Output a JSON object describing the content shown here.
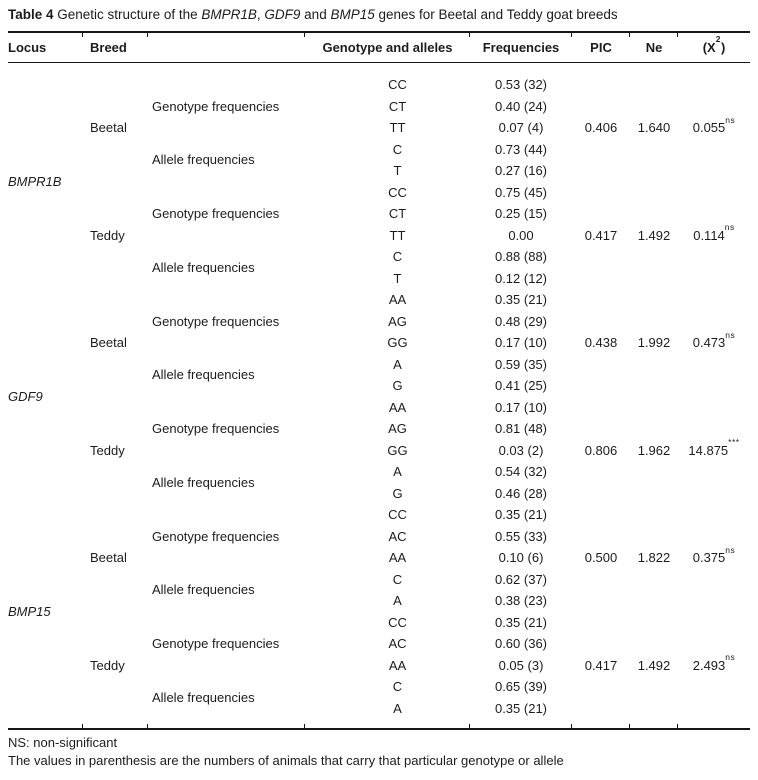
{
  "title": {
    "segments": [
      {
        "text": "Table 4 ",
        "style": "bold"
      },
      {
        "text": "Genetic structure of the ",
        "style": "normal"
      },
      {
        "text": "BMPR1B",
        "style": "italic"
      },
      {
        "text": ", ",
        "style": "normal"
      },
      {
        "text": "GDF9",
        "style": "italic"
      },
      {
        "text": " and ",
        "style": "normal"
      },
      {
        "text": "BMP15",
        "style": "italic"
      },
      {
        "text": " genes for Beetal and Teddy goat breeds",
        "style": "normal"
      }
    ]
  },
  "table": {
    "headers": {
      "locus": "Locus",
      "breed": "Breed",
      "genotype_alleles": "Genotype and alleles",
      "frequencies": "Frequencies",
      "pic": "PIC",
      "ne": "Ne",
      "chi": {
        "pre": "(X",
        "sup": "2",
        "post": ")"
      }
    },
    "genes": [
      {
        "locus": "BMPR1B",
        "breeds": [
          {
            "name": "Beetal",
            "genotype_label": "Genotype frequencies",
            "allele_label": "Allele frequencies",
            "genotypes": [
              [
                "CC",
                "0.53 (32)"
              ],
              [
                "CT",
                "0.40 (24)"
              ],
              [
                "TT",
                "0.07 (4)"
              ]
            ],
            "alleles": [
              [
                "C",
                "0.73 (44)"
              ],
              [
                "T",
                "0.27 (16)"
              ]
            ],
            "pic": "0.406",
            "ne": "1.640",
            "chi": "0.055",
            "chi_sup": "ns"
          },
          {
            "name": "Teddy",
            "genotype_label": "Genotype frequencies",
            "allele_label": "Allele frequencies",
            "genotypes": [
              [
                "CC",
                "0.75 (45)"
              ],
              [
                "CT",
                "0.25 (15)"
              ],
              [
                "TT",
                "0.00"
              ]
            ],
            "alleles": [
              [
                "C",
                "0.88 (88)"
              ],
              [
                "T",
                "0.12 (12)"
              ]
            ],
            "pic": "0.417",
            "ne": "1.492",
            "chi": "0.114",
            "chi_sup": "ns"
          }
        ]
      },
      {
        "locus": "GDF9",
        "breeds": [
          {
            "name": "Beetal",
            "genotype_label": "Genotype frequencies",
            "allele_label": "Allele frequencies",
            "genotypes": [
              [
                "AA",
                "0.35 (21)"
              ],
              [
                "AG",
                "0.48 (29)"
              ],
              [
                "GG",
                "0.17 (10)"
              ]
            ],
            "alleles": [
              [
                "A",
                "0.59 (35)"
              ],
              [
                "G",
                "0.41 (25)"
              ]
            ],
            "pic": "0.438",
            "ne": "1.992",
            "chi": "0.473",
            "chi_sup": "ns"
          },
          {
            "name": "Teddy",
            "genotype_label": "Genotype frequencies",
            "allele_label": "Allele frequencies",
            "genotypes": [
              [
                "AA",
                "0.17 (10)"
              ],
              [
                "AG",
                "0.81 (48)"
              ],
              [
                "GG",
                "0.03 (2)"
              ]
            ],
            "alleles": [
              [
                "A",
                "0.54 (32)"
              ],
              [
                "G",
                "0.46 (28)"
              ]
            ],
            "pic": "0.806",
            "ne": "1.962",
            "chi": "14.875",
            "chi_sup": "***"
          }
        ]
      },
      {
        "locus": "BMP15",
        "breeds": [
          {
            "name": "Beetal",
            "genotype_label": "Genotype frequencies",
            "allele_label": "Allele frequencies",
            "genotypes": [
              [
                "CC",
                "0.35 (21)"
              ],
              [
                "AC",
                "0.55 (33)"
              ],
              [
                "AA",
                "0.10 (6)"
              ]
            ],
            "alleles": [
              [
                "C",
                "0.62 (37)"
              ],
              [
                "A",
                "0.38 (23)"
              ]
            ],
            "pic": "0.500",
            "ne": "1.822",
            "chi": "0.375",
            "chi_sup": "ns"
          },
          {
            "name": "Teddy",
            "genotype_label": "Genotype frequencies",
            "allele_label": "Allele frequencies",
            "genotypes": [
              [
                "CC",
                "0.35 (21)"
              ],
              [
                "AC",
                "0.60 (36)"
              ],
              [
                "AA",
                "0.05 (3)"
              ]
            ],
            "alleles": [
              [
                "C",
                "0.65 (39)"
              ],
              [
                "A",
                "0.35 (21)"
              ]
            ],
            "pic": "0.417",
            "ne": "1.492",
            "chi": "2.493",
            "chi_sup": "ns"
          }
        ]
      }
    ]
  },
  "footnotes": [
    "NS: non-significant",
    "The values in parenthesis are the numbers of animals that carry that particular genotype or allele"
  ],
  "colors": {
    "text": "#1c1c1c",
    "rule": "#161616",
    "background": "#ffffff"
  }
}
